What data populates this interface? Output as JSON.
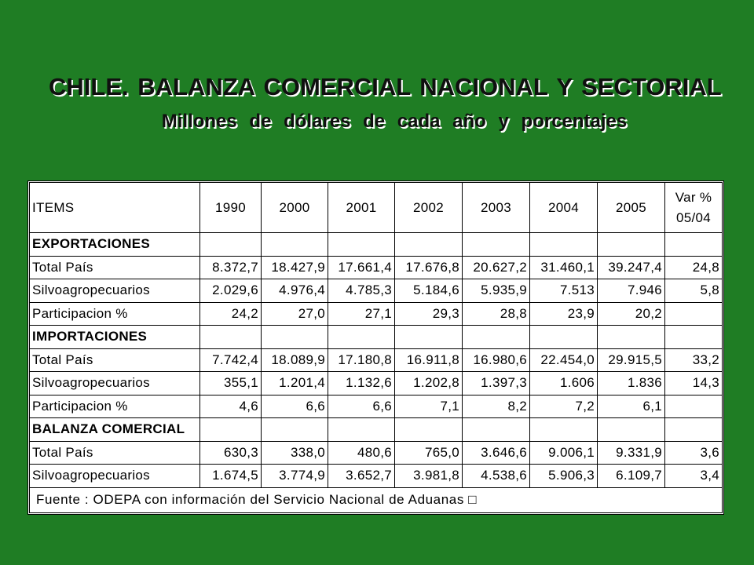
{
  "colors": {
    "background": "#1f7d24",
    "table_background": "#ffffff",
    "table_grid": "#000000",
    "text": "#000000",
    "title_text": "#101010",
    "title_shadow": "#ffffff"
  },
  "chart_data": {
    "type": "table",
    "title": "CHILE. BALANZA COMERCIAL NACIONAL Y SECTORIAL",
    "subtitle": "Millones de dólares de cada año y porcentajes",
    "header": {
      "items": "ITEMS",
      "years": [
        "1990",
        "2000",
        "2001",
        "2002",
        "2003",
        "2004",
        "2005"
      ],
      "var_line1": "Var %",
      "var_line2": "05/04"
    },
    "sections": [
      {
        "heading": "EXPORTACIONES",
        "rows": [
          {
            "label": "Total País",
            "values": [
              "8.372,7",
              "18.427,9",
              "17.661,4",
              "17.676,8",
              "20.627,2",
              "31.460,1",
              "39.247,4"
            ],
            "var": "24,8"
          },
          {
            "label": "Silvoagropecuarios",
            "values": [
              "2.029,6",
              "4.976,4",
              "4.785,3",
              "5.184,6",
              "5.935,9",
              "7.513",
              "7.946"
            ],
            "var": "5,8"
          },
          {
            "label": "Participacion %",
            "values": [
              "24,2",
              "27,0",
              "27,1",
              "29,3",
              "28,8",
              "23,9",
              "20,2"
            ],
            "var": ""
          }
        ]
      },
      {
        "heading": "IMPORTACIONES",
        "rows": [
          {
            "label": "Total País",
            "values": [
              "7.742,4",
              "18.089,9",
              "17.180,8",
              "16.911,8",
              "16.980,6",
              "22.454,0",
              "29.915,5"
            ],
            "var": "33,2"
          },
          {
            "label": "Silvoagropecuarios",
            "values": [
              "355,1",
              "1.201,4",
              "1.132,6",
              "1.202,8",
              "1.397,3",
              "1.606",
              "1.836"
            ],
            "var": "14,3"
          },
          {
            "label": "Participacion %",
            "values": [
              "4,6",
              "6,6",
              "6,6",
              "7,1",
              "8,2",
              "7,2",
              "6,1"
            ],
            "var": ""
          }
        ]
      },
      {
        "heading": "BALANZA COMERCIAL",
        "rows": [
          {
            "label": "Total País",
            "values": [
              "630,3",
              "338,0",
              "480,6",
              "765,0",
              "3.646,6",
              "9.006,1",
              "9.331,9"
            ],
            "var": "3,6"
          },
          {
            "label": "Silvoagropecuarios",
            "values": [
              "1.674,5",
              "3.774,9",
              "3.652,7",
              "3.981,8",
              "4.538,6",
              "5.906,3",
              "6.109,7"
            ],
            "var": "3,4"
          }
        ]
      }
    ],
    "source": "Fuente : ODEPA con información del Servicio Nacional de Aduanas □"
  }
}
